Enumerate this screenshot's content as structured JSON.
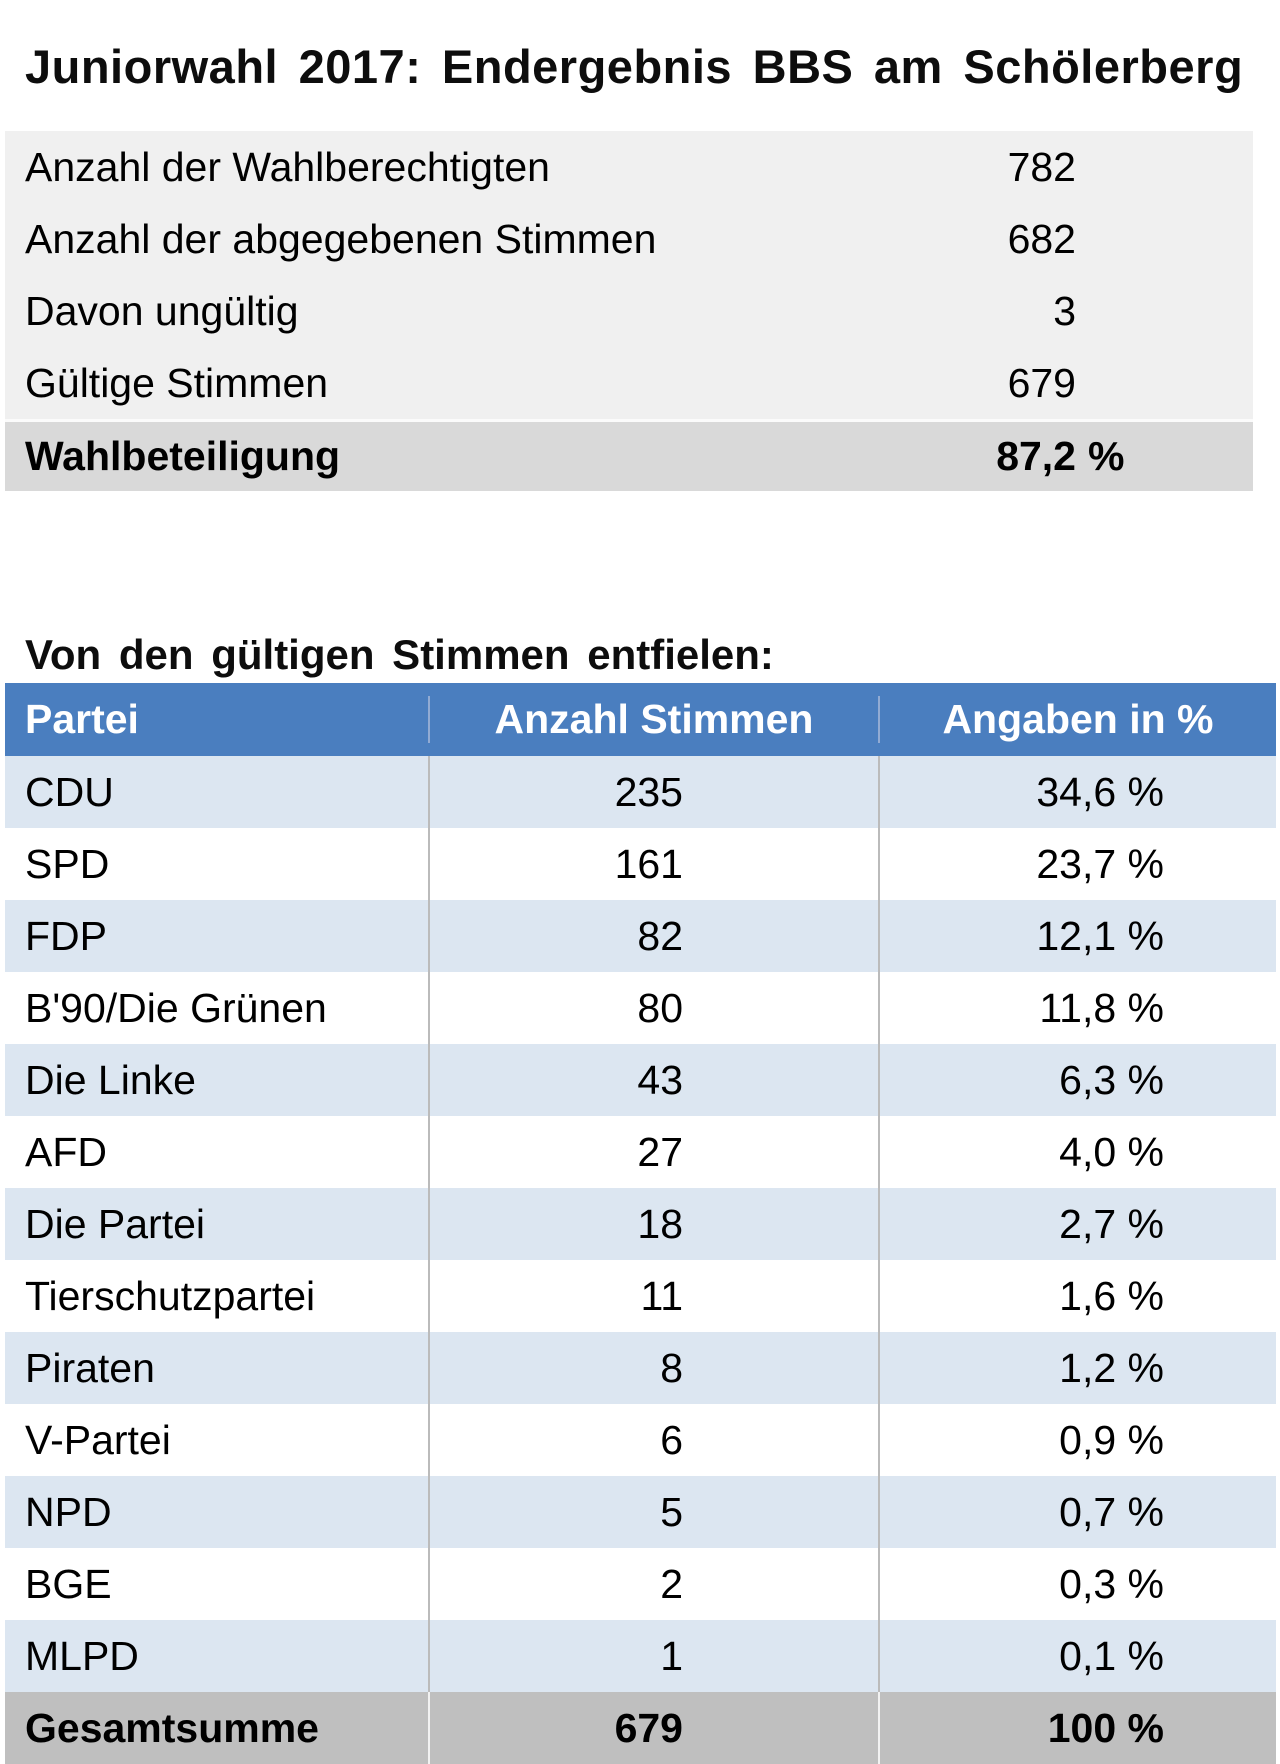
{
  "title": "Juniorwahl 2017: Endergebnis BBS am Schölerberg",
  "summary_table": {
    "rows": [
      {
        "label": "Anzahl der Wahlberechtigten",
        "value": "782",
        "unit": ""
      },
      {
        "label": "Anzahl der abgegebenen Stimmen",
        "value": "682",
        "unit": ""
      },
      {
        "label": "Davon ungültig",
        "value": "3",
        "unit": ""
      },
      {
        "label": "Gültige Stimmen",
        "value": "679",
        "unit": ""
      }
    ],
    "total_row": {
      "label": "Wahlbeteiligung",
      "value": "87,2",
      "unit": "%"
    }
  },
  "section_heading": "Von den gültigen Stimmen entfielen:",
  "results_table": {
    "headers": [
      "Partei",
      "Anzahl Stimmen",
      "Angaben in %"
    ],
    "rows": [
      [
        "CDU",
        "235",
        "34,6 %"
      ],
      [
        "SPD",
        "161",
        "23,7 %"
      ],
      [
        "FDP",
        "82",
        "12,1 %"
      ],
      [
        "B'90/Die Grünen",
        "80",
        "11,8 %"
      ],
      [
        "Die Linke",
        "43",
        "6,3 %"
      ],
      [
        "AFD",
        "27",
        "4,0 %"
      ],
      [
        "Die Partei",
        "18",
        "2,7 %"
      ],
      [
        "Tierschutzpartei",
        "11",
        "1,6 %"
      ],
      [
        "Piraten",
        "8",
        "1,2 %"
      ],
      [
        "V-Partei",
        "6",
        "0,9 %"
      ],
      [
        "NPD",
        "5",
        "0,7 %"
      ],
      [
        "BGE",
        "2",
        "0,3 %"
      ],
      [
        "MLPD",
        "1",
        "0,1 %"
      ]
    ],
    "total_row": [
      "Gesamtsumme",
      "679",
      "100 %"
    ]
  },
  "chart_data": {
    "type": "table",
    "title": "Juniorwahl 2017: Endergebnis BBS am Schölerberg",
    "categories": [
      "CDU",
      "SPD",
      "FDP",
      "B'90/Die Grünen",
      "Die Linke",
      "AFD",
      "Die Partei",
      "Tierschutzpartei",
      "Piraten",
      "V-Partei",
      "NPD",
      "BGE",
      "MLPD"
    ],
    "series": [
      {
        "name": "Anzahl Stimmen",
        "values": [
          235,
          161,
          82,
          80,
          43,
          27,
          18,
          11,
          8,
          6,
          5,
          2,
          1
        ]
      },
      {
        "name": "Angaben in %",
        "values": [
          34.6,
          23.7,
          12.1,
          11.8,
          6.3,
          4.0,
          2.7,
          1.6,
          1.2,
          0.9,
          0.7,
          0.3,
          0.1
        ]
      }
    ],
    "totals": {
      "Anzahl Stimmen": 679,
      "Angaben in %": 100
    },
    "summary": {
      "Anzahl der Wahlberechtigten": 782,
      "Anzahl der abgegebenen Stimmen": 682,
      "Davon ungültig": 3,
      "Gültige Stimmen": 679,
      "Wahlbeteiligung": "87,2 %"
    }
  },
  "colors": {
    "header_blue": "#4a7ebf",
    "stripe_blue": "#dce6f1",
    "summary_gray": "#f0f0f0",
    "participation_gray": "#d9d9d9",
    "total_gray": "#bfbfbf",
    "text": "#000000"
  }
}
